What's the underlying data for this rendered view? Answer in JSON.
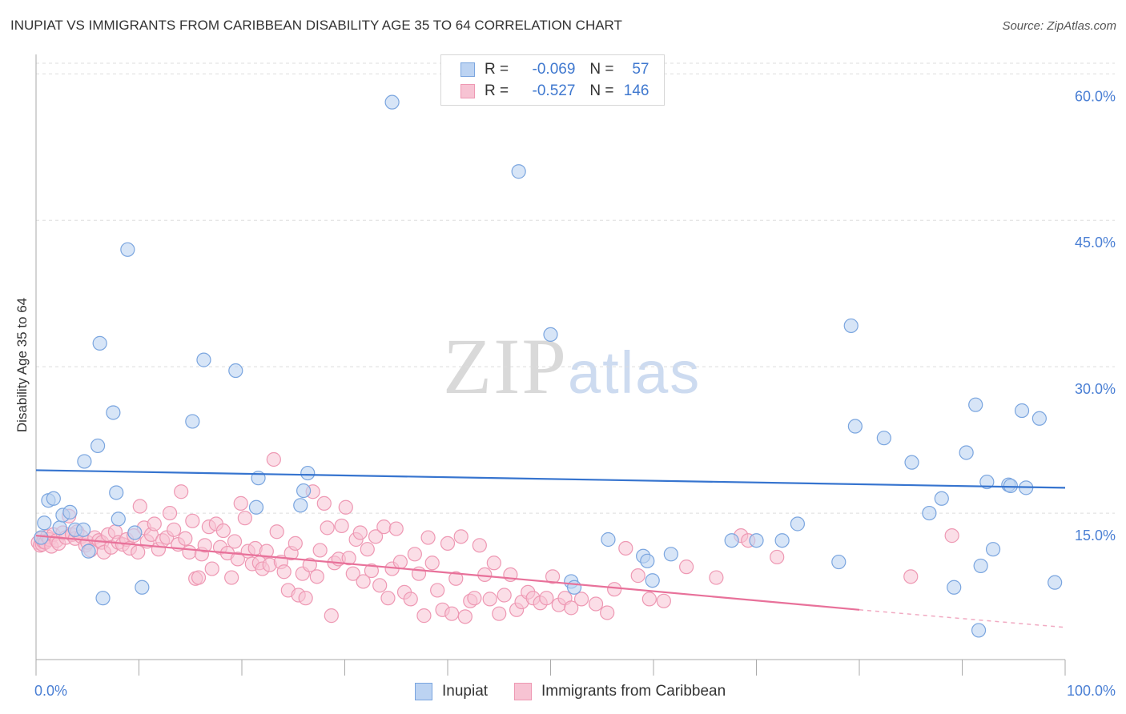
{
  "header": {
    "title": "INUPIAT VS IMMIGRANTS FROM CARIBBEAN DISABILITY AGE 35 TO 64 CORRELATION CHART",
    "source": "Source: ZipAtlas.com"
  },
  "watermark": {
    "zip": "ZIP",
    "atlas": "atlas"
  },
  "legend": {
    "r_label": "R =",
    "n_label": "N =",
    "rows": [
      {
        "r": "-0.069",
        "n": "57",
        "color": "#4a7fd4"
      },
      {
        "r": "-0.527",
        "n": "146",
        "color": "#e8719a"
      }
    ]
  },
  "bottom_legend": {
    "items": [
      {
        "label": "Inupiat"
      },
      {
        "label": "Immigrants from Caribbean"
      }
    ]
  },
  "colors": {
    "blue_fill": "#bcd3f2",
    "blue_stroke": "#7aa5df",
    "blue_line": "#3674cf",
    "pink_fill": "#f7c3d3",
    "pink_stroke": "#ee98b3",
    "pink_line": "#e8719a",
    "grid": "#dddddd"
  },
  "chart_data": {
    "type": "scatter",
    "title": "INUPIAT VS IMMIGRANTS FROM CARIBBEAN DISABILITY AGE 35 TO 64 CORRELATION CHART",
    "xlabel": "",
    "ylabel": "Disability Age 35 to 64",
    "xlim": [
      0,
      100
    ],
    "ylim": [
      0,
      61.5
    ],
    "x_tick_labels": [
      "0.0%",
      "100.0%"
    ],
    "y_ticks": [
      15,
      30,
      45,
      60
    ],
    "y_tick_labels": [
      "15.0%",
      "30.0%",
      "45.0%",
      "60.0%"
    ],
    "grid": true,
    "legend_position": "top-center",
    "series": [
      {
        "name": "Inupiat",
        "r": -0.069,
        "n": 57,
        "trend": {
          "x": [
            0,
            100
          ],
          "y": [
            19.4,
            17.6
          ]
        },
        "points": [
          [
            0.5,
            12.5
          ],
          [
            0.8,
            14.0
          ],
          [
            1.2,
            16.3
          ],
          [
            1.7,
            16.5
          ],
          [
            2.3,
            13.5
          ],
          [
            2.6,
            14.8
          ],
          [
            3.3,
            15.1
          ],
          [
            3.8,
            13.3
          ],
          [
            4.6,
            13.3
          ],
          [
            4.7,
            20.3
          ],
          [
            5.1,
            11.1
          ],
          [
            6.0,
            21.9
          ],
          [
            6.2,
            32.4
          ],
          [
            6.5,
            6.3
          ],
          [
            7.5,
            25.3
          ],
          [
            7.8,
            17.1
          ],
          [
            8.0,
            14.4
          ],
          [
            8.9,
            42.0
          ],
          [
            9.6,
            13.0
          ],
          [
            10.3,
            7.4
          ],
          [
            15.2,
            24.4
          ],
          [
            16.3,
            30.7
          ],
          [
            19.4,
            29.6
          ],
          [
            21.4,
            15.6
          ],
          [
            21.6,
            18.6
          ],
          [
            25.7,
            15.8
          ],
          [
            26.0,
            17.3
          ],
          [
            26.4,
            19.1
          ],
          [
            34.6,
            57.1
          ],
          [
            46.9,
            50.0
          ],
          [
            50.0,
            33.3
          ],
          [
            52.0,
            8.0
          ],
          [
            52.3,
            7.4
          ],
          [
            55.6,
            12.3
          ],
          [
            59.0,
            10.6
          ],
          [
            59.4,
            10.1
          ],
          [
            59.9,
            8.1
          ],
          [
            61.7,
            10.8
          ],
          [
            67.6,
            12.2
          ],
          [
            70.0,
            12.2
          ],
          [
            72.5,
            12.2
          ],
          [
            74.0,
            13.9
          ],
          [
            78.0,
            10.0
          ],
          [
            79.2,
            34.2
          ],
          [
            79.6,
            23.9
          ],
          [
            82.4,
            22.7
          ],
          [
            85.1,
            20.2
          ],
          [
            86.8,
            15.0
          ],
          [
            88.0,
            16.5
          ],
          [
            89.2,
            7.4
          ],
          [
            90.4,
            21.2
          ],
          [
            91.3,
            26.1
          ],
          [
            91.6,
            3.0
          ],
          [
            91.8,
            9.6
          ],
          [
            92.4,
            18.2
          ],
          [
            93.0,
            11.3
          ],
          [
            94.5,
            17.9
          ],
          [
            94.7,
            17.8
          ],
          [
            95.8,
            25.5
          ],
          [
            96.2,
            17.6
          ],
          [
            97.5,
            24.7
          ],
          [
            99.0,
            7.9
          ]
        ]
      },
      {
        "name": "Immigrants from Caribbean",
        "r": -0.527,
        "n": 146,
        "trend": {
          "x": [
            0,
            80
          ],
          "y": [
            12.7,
            5.1
          ]
        },
        "trend_dashed": {
          "x": [
            80,
            100
          ],
          "y": [
            5.1,
            3.3
          ]
        },
        "points": [
          [
            0.2,
            12.0
          ],
          [
            0.4,
            11.7
          ],
          [
            0.5,
            12.4
          ],
          [
            0.6,
            11.8
          ],
          [
            0.7,
            12.1
          ],
          [
            0.9,
            12.0
          ],
          [
            1.1,
            12.6
          ],
          [
            1.3,
            12.3
          ],
          [
            1.5,
            11.6
          ],
          [
            1.7,
            12.8
          ],
          [
            2.0,
            12.2
          ],
          [
            2.2,
            11.9
          ],
          [
            2.6,
            13.0
          ],
          [
            2.9,
            12.5
          ],
          [
            3.2,
            14.7
          ],
          [
            3.5,
            12.8
          ],
          [
            3.8,
            12.4
          ],
          [
            4.0,
            13.1
          ],
          [
            4.4,
            12.6
          ],
          [
            4.8,
            11.7
          ],
          [
            5.0,
            12.0
          ],
          [
            5.3,
            11.2
          ],
          [
            5.7,
            12.5
          ],
          [
            6.1,
            12.2
          ],
          [
            6.4,
            12.0
          ],
          [
            6.6,
            11.0
          ],
          [
            7.0,
            12.8
          ],
          [
            7.3,
            11.5
          ],
          [
            7.7,
            13.1
          ],
          [
            8.0,
            12.0
          ],
          [
            8.4,
            11.8
          ],
          [
            8.8,
            12.3
          ],
          [
            9.1,
            11.4
          ],
          [
            9.5,
            12.7
          ],
          [
            9.9,
            11.0
          ],
          [
            10.1,
            15.7
          ],
          [
            10.5,
            13.5
          ],
          [
            10.8,
            12.1
          ],
          [
            11.2,
            12.8
          ],
          [
            11.5,
            13.9
          ],
          [
            11.9,
            11.3
          ],
          [
            12.3,
            12.2
          ],
          [
            12.7,
            12.5
          ],
          [
            13.0,
            15.0
          ],
          [
            13.4,
            13.3
          ],
          [
            13.8,
            11.8
          ],
          [
            14.1,
            17.2
          ],
          [
            14.5,
            12.4
          ],
          [
            14.9,
            11.0
          ],
          [
            15.2,
            14.2
          ],
          [
            15.5,
            8.3
          ],
          [
            15.8,
            8.4
          ],
          [
            16.1,
            10.8
          ],
          [
            16.4,
            11.7
          ],
          [
            16.8,
            13.6
          ],
          [
            17.1,
            9.3
          ],
          [
            17.5,
            13.9
          ],
          [
            17.9,
            11.5
          ],
          [
            18.2,
            13.2
          ],
          [
            18.6,
            10.9
          ],
          [
            19.0,
            8.4
          ],
          [
            19.3,
            12.1
          ],
          [
            19.6,
            10.3
          ],
          [
            19.9,
            16.0
          ],
          [
            20.3,
            14.5
          ],
          [
            20.6,
            11.1
          ],
          [
            21.0,
            9.8
          ],
          [
            21.3,
            11.4
          ],
          [
            21.7,
            9.9
          ],
          [
            22.0,
            9.3
          ],
          [
            22.4,
            11.1
          ],
          [
            22.7,
            9.7
          ],
          [
            23.1,
            20.5
          ],
          [
            23.4,
            13.1
          ],
          [
            23.8,
            10.0
          ],
          [
            24.1,
            9.0
          ],
          [
            24.5,
            7.1
          ],
          [
            24.8,
            10.9
          ],
          [
            25.2,
            11.9
          ],
          [
            25.5,
            6.6
          ],
          [
            25.9,
            8.8
          ],
          [
            26.2,
            6.3
          ],
          [
            26.6,
            9.7
          ],
          [
            26.9,
            17.2
          ],
          [
            27.3,
            8.5
          ],
          [
            27.6,
            11.2
          ],
          [
            28.0,
            16.0
          ],
          [
            28.3,
            13.5
          ],
          [
            28.7,
            4.5
          ],
          [
            29.0,
            9.9
          ],
          [
            29.4,
            10.3
          ],
          [
            29.7,
            13.7
          ],
          [
            30.1,
            15.6
          ],
          [
            30.4,
            10.4
          ],
          [
            30.8,
            8.8
          ],
          [
            31.1,
            12.3
          ],
          [
            31.5,
            13.0
          ],
          [
            31.8,
            8.0
          ],
          [
            32.2,
            11.3
          ],
          [
            32.6,
            9.1
          ],
          [
            33.0,
            12.6
          ],
          [
            33.4,
            7.6
          ],
          [
            33.8,
            13.6
          ],
          [
            34.2,
            6.3
          ],
          [
            34.6,
            9.3
          ],
          [
            35.0,
            13.4
          ],
          [
            35.4,
            10.0
          ],
          [
            35.8,
            6.9
          ],
          [
            36.4,
            6.2
          ],
          [
            36.8,
            10.8
          ],
          [
            37.2,
            8.8
          ],
          [
            37.7,
            4.5
          ],
          [
            38.1,
            12.5
          ],
          [
            38.5,
            9.9
          ],
          [
            39.0,
            7.1
          ],
          [
            39.5,
            5.1
          ],
          [
            40.0,
            11.9
          ],
          [
            40.4,
            4.7
          ],
          [
            40.8,
            8.3
          ],
          [
            41.3,
            12.6
          ],
          [
            41.7,
            4.4
          ],
          [
            42.2,
            6.0
          ],
          [
            42.6,
            6.3
          ],
          [
            43.1,
            11.7
          ],
          [
            43.6,
            8.7
          ],
          [
            44.1,
            6.2
          ],
          [
            44.5,
            9.9
          ],
          [
            45.0,
            4.7
          ],
          [
            45.5,
            6.6
          ],
          [
            46.1,
            8.7
          ],
          [
            46.7,
            5.1
          ],
          [
            47.2,
            5.9
          ],
          [
            47.8,
            6.9
          ],
          [
            48.3,
            6.3
          ],
          [
            49.0,
            5.8
          ],
          [
            49.6,
            6.3
          ],
          [
            50.2,
            8.5
          ],
          [
            50.8,
            5.6
          ],
          [
            51.4,
            6.3
          ],
          [
            52.0,
            5.3
          ],
          [
            53.0,
            6.2
          ],
          [
            54.4,
            5.7
          ],
          [
            55.5,
            4.8
          ],
          [
            56.2,
            7.2
          ],
          [
            57.3,
            11.4
          ],
          [
            58.5,
            8.6
          ],
          [
            59.6,
            6.2
          ],
          [
            61.0,
            6.0
          ],
          [
            63.2,
            9.5
          ],
          [
            66.1,
            8.4
          ],
          [
            68.5,
            12.7
          ],
          [
            69.2,
            12.2
          ],
          [
            72.0,
            10.5
          ],
          [
            85.0,
            8.5
          ],
          [
            89.0,
            12.7
          ]
        ]
      }
    ]
  }
}
